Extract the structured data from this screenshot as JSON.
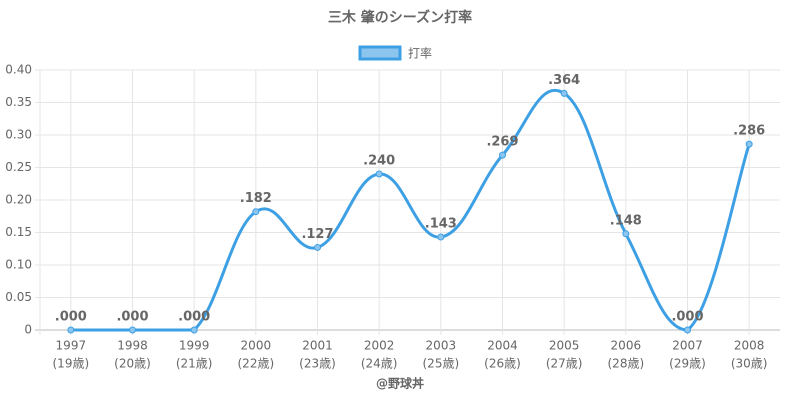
{
  "chart_data": {
    "type": "line",
    "title": "三木 肇のシーズン打率",
    "categories": [
      [
        "1997",
        "(19歳)"
      ],
      [
        "1998",
        "(20歳)"
      ],
      [
        "1999",
        "(21歳)"
      ],
      [
        "2000",
        "(22歳)"
      ],
      [
        "2001",
        "(23歳)"
      ],
      [
        "2002",
        "(24歳)"
      ],
      [
        "2003",
        "(25歳)"
      ],
      [
        "2004",
        "(26歳)"
      ],
      [
        "2005",
        "(27歳)"
      ],
      [
        "2006",
        "(28歳)"
      ],
      [
        "2007",
        "(29歳)"
      ],
      [
        "2008",
        "(30歳)"
      ]
    ],
    "series": [
      {
        "name": "打率",
        "color": "#3ea0e4",
        "values": [
          0,
          0,
          0,
          0.182,
          0.127,
          0.24,
          0.143,
          0.269,
          0.364,
          0.148,
          0,
          0.286
        ],
        "value_labels": [
          ".000",
          ".000",
          ".000",
          ".182",
          ".127",
          ".240",
          ".143",
          ".269",
          ".364",
          ".148",
          ".000",
          ".286"
        ]
      }
    ],
    "ylim": [
      0,
      0.4
    ],
    "yticks": [
      0,
      0.05,
      {
        "value": 0.1,
        "label": "0.10"
      },
      0.15,
      {
        "value": 0.2,
        "label": "0.20"
      },
      0.25,
      {
        "value": 0.3,
        "label": "0.30"
      },
      0.35,
      {
        "value": 0.4,
        "label": "0.40"
      }
    ],
    "grid": true,
    "legend": "top",
    "footer": "@野球丼"
  }
}
